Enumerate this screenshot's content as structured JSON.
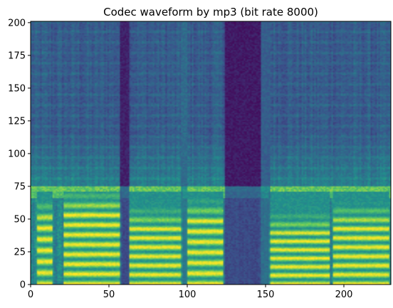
{
  "chart_data": {
    "type": "heatmap",
    "title": "Codec waveform by mp3 (bit rate 8000)",
    "xlabel": "",
    "ylabel": "",
    "xlim": [
      0,
      230
    ],
    "ylim": [
      0,
      201
    ],
    "x_ticks": [
      0,
      50,
      100,
      150,
      200
    ],
    "y_ticks": [
      0,
      25,
      50,
      75,
      100,
      125,
      150,
      175,
      200
    ],
    "grid": false,
    "legend": "none",
    "colormap": "viridis",
    "colormap_stops": [
      "#440154",
      "#3b528b",
      "#21918c",
      "#5ec962",
      "#fde725"
    ],
    "frame_color": "#000000",
    "speech_cutoff_bin": 75,
    "voiced_segments": [
      {
        "x": [
          4,
          13
        ],
        "ceiling": 48,
        "harmonic_spacing": 8.5
      },
      {
        "x": [
          21,
          57
        ],
        "ceiling": 55,
        "harmonic_spacing": 7.5
      },
      {
        "x": [
          63,
          96
        ],
        "ceiling": 42,
        "harmonic_spacing": 7.0
      },
      {
        "x": [
          100,
          122
        ],
        "ceiling": 48,
        "harmonic_spacing": 8.0
      },
      {
        "x": [
          152,
          190
        ],
        "ceiling": 38,
        "harmonic_spacing": 6.5
      },
      {
        "x": [
          193,
          228
        ],
        "ceiling": 45,
        "harmonic_spacing": 7.0
      }
    ],
    "quiet_columns": [
      {
        "x": [
          57,
          62
        ],
        "level": 0.1
      },
      {
        "x": [
          96,
          99
        ],
        "level": 0.35
      },
      {
        "x": [
          124,
          146
        ],
        "level": 0.08
      },
      {
        "x": [
          146,
          152
        ],
        "level": 0.3
      }
    ]
  }
}
